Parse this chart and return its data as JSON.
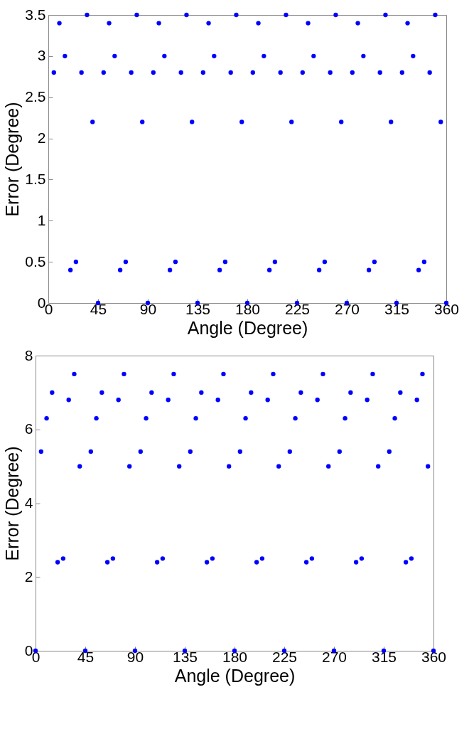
{
  "chart_data": [
    {
      "type": "scatter",
      "xlabel": "Angle (Degree)",
      "ylabel": "Error (Degree)",
      "x": [
        5,
        10,
        15,
        20,
        25,
        30,
        35,
        40,
        45,
        50,
        55,
        60,
        65,
        70,
        75,
        80,
        85,
        90,
        95,
        100,
        105,
        110,
        115,
        120,
        125,
        130,
        135,
        140,
        145,
        150,
        155,
        160,
        165,
        170,
        175,
        180,
        185,
        190,
        195,
        200,
        205,
        210,
        215,
        220,
        225,
        230,
        235,
        240,
        245,
        250,
        255,
        260,
        265,
        270,
        275,
        280,
        285,
        290,
        295,
        300,
        305,
        310,
        315,
        320,
        325,
        330,
        335,
        340,
        345,
        350,
        355,
        360
      ],
      "series": [
        {
          "color": "#0000ff",
          "values": [
            2.8,
            3.4,
            3.0,
            0.4,
            0.5,
            2.8,
            3.5,
            2.2,
            0,
            2.8,
            3.4,
            3.0,
            0.4,
            0.5,
            2.8,
            3.5,
            2.2,
            0,
            2.8,
            3.4,
            3.0,
            0.4,
            0.5,
            2.8,
            3.5,
            2.2,
            0,
            2.8,
            3.4,
            3.0,
            0.4,
            0.5,
            2.8,
            3.5,
            2.2,
            0,
            2.8,
            3.4,
            3.0,
            0.4,
            0.5,
            2.8,
            3.5,
            2.2,
            0,
            2.8,
            3.4,
            3.0,
            0.4,
            0.5,
            2.8,
            3.5,
            2.2,
            0,
            2.8,
            3.4,
            3.0,
            0.4,
            0.5,
            2.8,
            3.5,
            2.2,
            0,
            2.8,
            3.4,
            3.0,
            0.4,
            0.5,
            2.8,
            3.5,
            2.2,
            0
          ]
        }
      ],
      "xlim": [
        0,
        360
      ],
      "xticks": [
        0,
        45,
        90,
        135,
        180,
        225,
        270,
        315,
        360
      ],
      "ylim": [
        0,
        3.5
      ],
      "yticks": [
        0,
        0.5,
        1,
        1.5,
        2,
        2.5,
        3,
        3.5
      ],
      "marker": "circle",
      "grid": false
    },
    {
      "type": "scatter",
      "xlabel": "Angle (Degree)",
      "ylabel": "Error (Degree)",
      "x": [
        0,
        5,
        10,
        15,
        20,
        25,
        30,
        35,
        40,
        45,
        50,
        55,
        60,
        65,
        70,
        75,
        80,
        85,
        90,
        95,
        100,
        105,
        110,
        115,
        120,
        125,
        130,
        135,
        140,
        145,
        150,
        155,
        160,
        165,
        170,
        175,
        180,
        185,
        190,
        195,
        200,
        205,
        210,
        215,
        220,
        225,
        230,
        235,
        240,
        245,
        250,
        255,
        260,
        265,
        270,
        275,
        280,
        285,
        290,
        295,
        300,
        305,
        310,
        315,
        320,
        325,
        330,
        335,
        340,
        345,
        350,
        355,
        360
      ],
      "series": [
        {
          "color": "#0000ff",
          "values": [
            0,
            5.4,
            6.3,
            7.0,
            2.4,
            2.5,
            6.8,
            7.5,
            5.0,
            0,
            5.4,
            6.3,
            7.0,
            2.4,
            2.5,
            6.8,
            7.5,
            5.0,
            0,
            5.4,
            6.3,
            7.0,
            2.4,
            2.5,
            6.8,
            7.5,
            5.0,
            0,
            5.4,
            6.3,
            7.0,
            2.4,
            2.5,
            6.8,
            7.5,
            5.0,
            0,
            5.4,
            6.3,
            7.0,
            2.4,
            2.5,
            6.8,
            7.5,
            5.0,
            0,
            5.4,
            6.3,
            7.0,
            2.4,
            2.5,
            6.8,
            7.5,
            5.0,
            0,
            5.4,
            6.3,
            7.0,
            2.4,
            2.5,
            6.8,
            7.5,
            5.0,
            0,
            5.4,
            6.3,
            7.0,
            2.4,
            2.5,
            6.8,
            7.5,
            5.0,
            0
          ]
        }
      ],
      "xlim": [
        0,
        360
      ],
      "xticks": [
        0,
        45,
        90,
        135,
        180,
        225,
        270,
        315,
        360
      ],
      "ylim": [
        0,
        8
      ],
      "yticks": [
        0,
        2,
        4,
        6,
        8
      ],
      "marker": "circle",
      "grid": false
    }
  ]
}
